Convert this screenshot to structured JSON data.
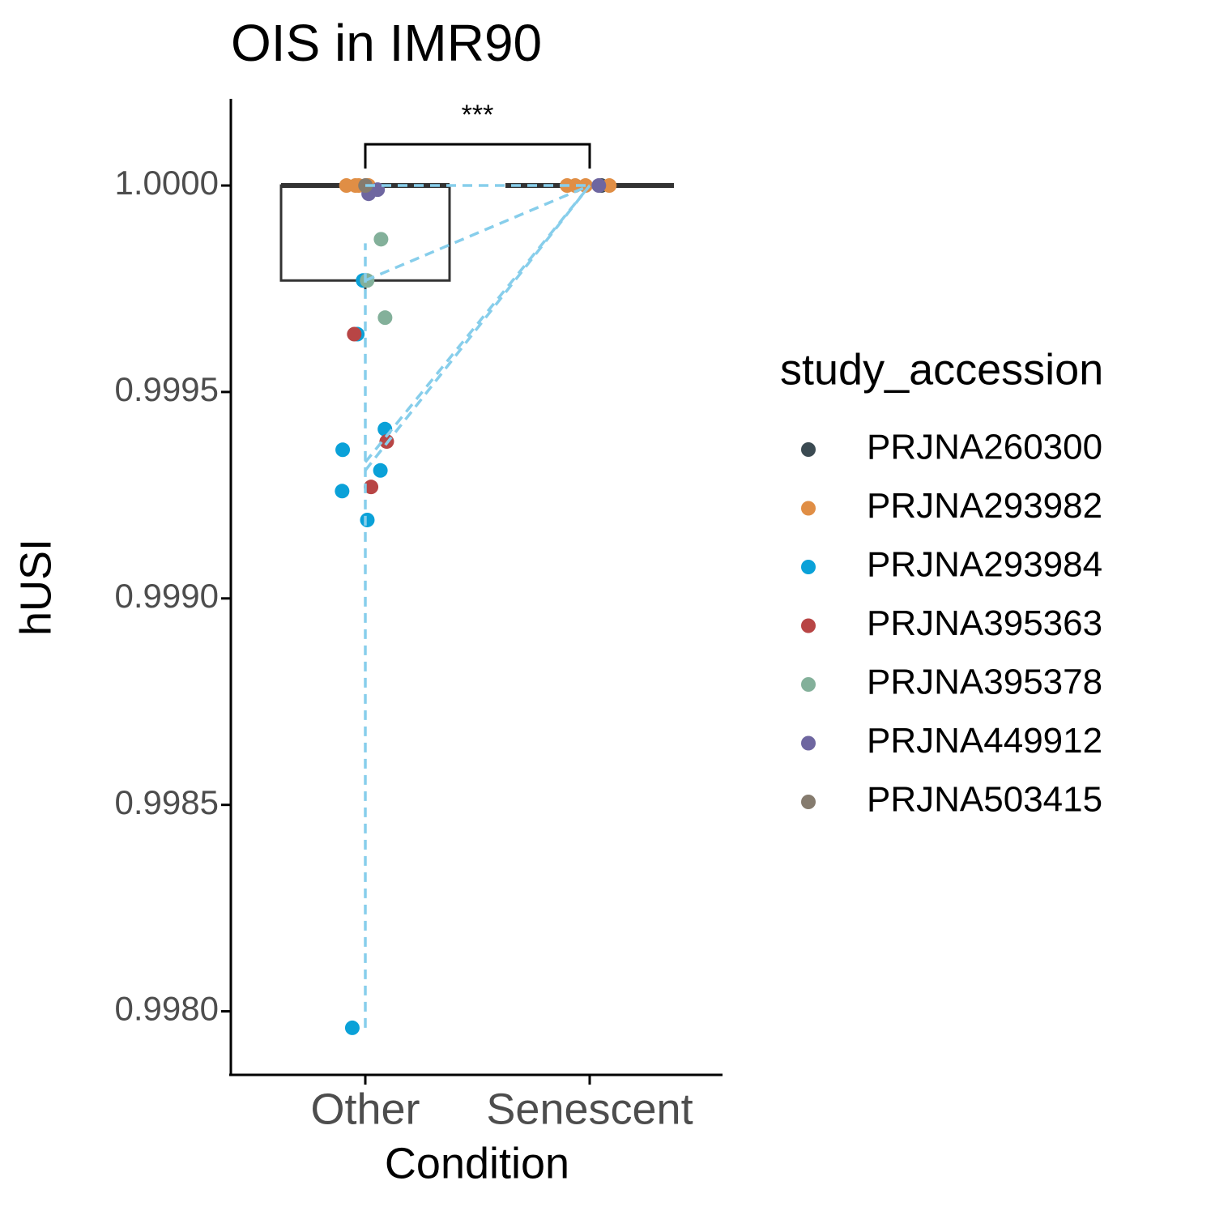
{
  "chart_data": {
    "type": "box",
    "title": "OIS in IMR90",
    "x_label": "Condition",
    "y_label": "hUSI",
    "categories": [
      "Other",
      "Senescent"
    ],
    "ylim": [
      0.99785,
      1.00021
    ],
    "yticks": [
      {
        "value": 0.998,
        "label": "0.9980"
      },
      {
        "value": 0.9985,
        "label": "0.9985"
      },
      {
        "value": 0.999,
        "label": "0.9990"
      },
      {
        "value": 0.9995,
        "label": "0.9995"
      },
      {
        "value": 1,
        "label": "1.0000"
      }
    ],
    "boxes": {
      "whisker_low": [
        0.99973,
        1
      ],
      "q1": [
        0.99977,
        1
      ],
      "median": [
        1,
        1
      ],
      "q3": [
        1,
        1
      ],
      "whisker_high": [
        1,
        1
      ]
    },
    "legend_title": "study_accession",
    "series": [
      {
        "name": "PRJNA260300",
        "color": "#3b4a52",
        "x": [
          "Senescent"
        ],
        "values": [
          1
        ]
      },
      {
        "name": "PRJNA293982",
        "color": "#e08e45",
        "x": [
          "Other",
          "Other",
          "Other",
          "Other",
          "Other",
          "Senescent",
          "Senescent",
          "Senescent",
          "Senescent"
        ],
        "values": [
          1,
          1,
          1,
          1,
          1,
          1,
          1,
          1,
          1
        ]
      },
      {
        "name": "PRJNA293984",
        "color": "#0aa1d8",
        "x": [
          "Other",
          "Other",
          "Other",
          "Other",
          "Other",
          "Other",
          "Other",
          "Other"
        ],
        "values": [
          0.99977,
          0.99964,
          0.99941,
          0.99936,
          0.99931,
          0.99926,
          0.99919,
          0.99796
        ]
      },
      {
        "name": "PRJNA395363",
        "color": "#b84545",
        "x": [
          "Other",
          "Other",
          "Other"
        ],
        "values": [
          0.99964,
          0.99938,
          0.99927
        ]
      },
      {
        "name": "PRJNA395378",
        "color": "#83b09a",
        "x": [
          "Other",
          "Other",
          "Other"
        ],
        "values": [
          0.99987,
          0.99977,
          0.99968
        ]
      },
      {
        "name": "PRJNA449912",
        "color": "#6e66a0",
        "x": [
          "Other",
          "Other",
          "Senescent"
        ],
        "values": [
          0.99999,
          0.99998,
          1
        ]
      },
      {
        "name": "PRJNA503415",
        "color": "#857b6e",
        "x": [
          "Other"
        ],
        "values": [
          1
        ]
      }
    ],
    "pair_lines": [
      {
        "from_category": "Other",
        "from_value": 1,
        "to_category": "Senescent",
        "to_value": 1
      },
      {
        "from_category": "Other",
        "from_value": 0.99977,
        "to_category": "Senescent",
        "to_value": 1
      },
      {
        "from_category": "Other",
        "from_value": 0.99933,
        "to_category": "Senescent",
        "to_value": 1
      },
      {
        "from_category": "Other",
        "from_value": 0.99931,
        "to_category": "Senescent",
        "to_value": 1
      },
      {
        "from_category": "Other",
        "from_value": 0.99796,
        "to_category": "Other",
        "to_value": 0.99986
      }
    ],
    "pair_line_color": "#87ceeb",
    "significance": {
      "label": "***",
      "from_category": "Other",
      "to_category": "Senescent",
      "value": 1.0001
    }
  }
}
